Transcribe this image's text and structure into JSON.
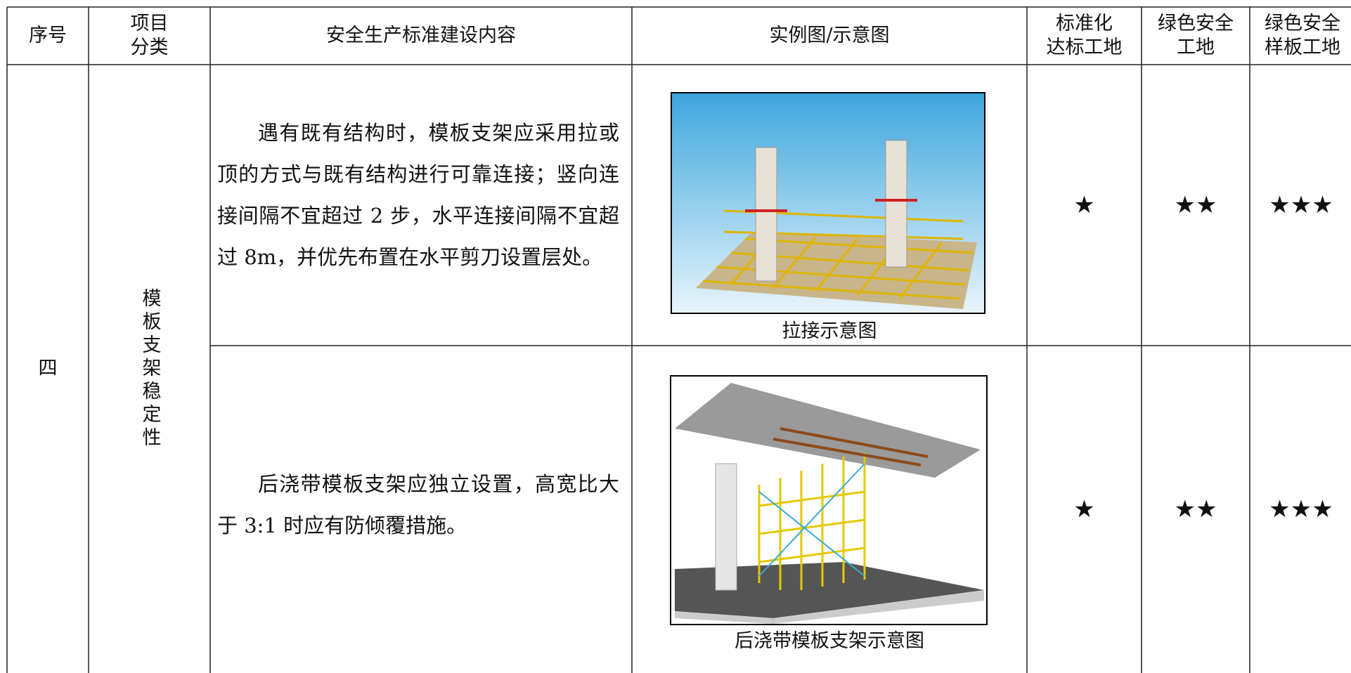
{
  "table": {
    "header": [
      [
        "序号"
      ],
      [
        "项目",
        "分类"
      ],
      [
        "安全生产标准建设内容"
      ],
      [
        "实例图/示意图"
      ],
      [
        "标准化",
        "达标工地"
      ],
      [
        "绿色安全",
        "工地"
      ],
      [
        "绿色安全",
        "样板工地"
      ]
    ],
    "index": "四",
    "category": "模板支架稳定性",
    "rows": [
      {
        "content": "遇有既有结构时，模板支架应采用拉或顶的方式与既有结构进行可靠连接；竖向连接间隔不宜超过 2 步，水平连接间隔不宜超过 8m，并优先布置在水平剪刀设置层处。",
        "caption": "拉接示意图",
        "level1": "★",
        "level2": "★★",
        "level3": "★★★"
      },
      {
        "content": "后浇带模板支架应独立设置，高宽比大于 3:1 时应有防倾覆措施。",
        "caption": "后浇带模板支架示意图",
        "level1": "★",
        "level2": "★★",
        "level3": "★★★"
      }
    ]
  }
}
